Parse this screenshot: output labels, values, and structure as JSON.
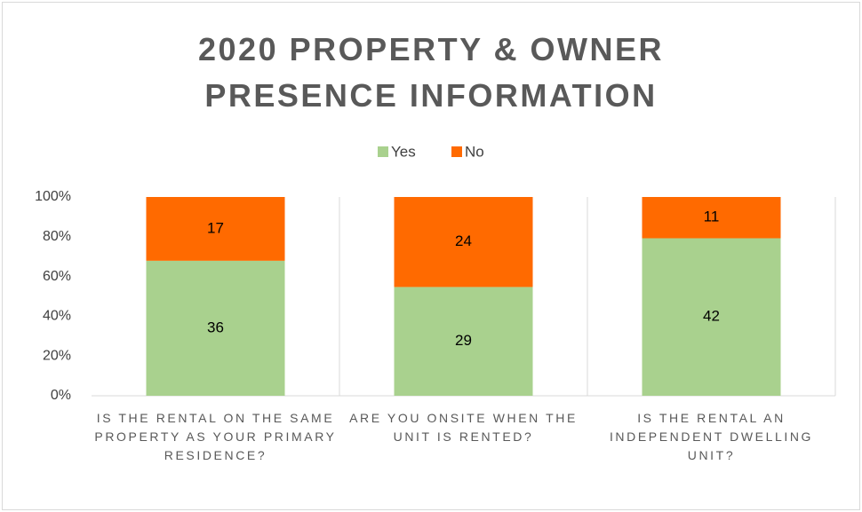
{
  "chart_data": {
    "type": "bar",
    "stacking": "percent",
    "title": "2020 PROPERTY & OWNER PRESENCE INFORMATION",
    "categories": [
      "IS THE RENTAL ON THE SAME PROPERTY AS YOUR PRIMARY RESIDENCE?",
      "ARE YOU ONSITE WHEN THE UNIT IS RENTED?",
      "IS THE RENTAL AN INDEPENDENT DWELLING UNIT?"
    ],
    "series": [
      {
        "name": "Yes",
        "color": "#a9d18e",
        "values": [
          36,
          29,
          42
        ]
      },
      {
        "name": "No",
        "color": "#ff6a00",
        "values": [
          17,
          24,
          11
        ]
      }
    ],
    "ylim": [
      0,
      100
    ],
    "yticks": [
      {
        "value": 0,
        "label": "0%"
      },
      {
        "value": 20,
        "label": "20%"
      },
      {
        "value": 40,
        "label": "40%"
      },
      {
        "value": 60,
        "label": "60%"
      },
      {
        "value": 80,
        "label": "80%"
      },
      {
        "value": 100,
        "label": "100%"
      }
    ],
    "legend": "top"
  }
}
